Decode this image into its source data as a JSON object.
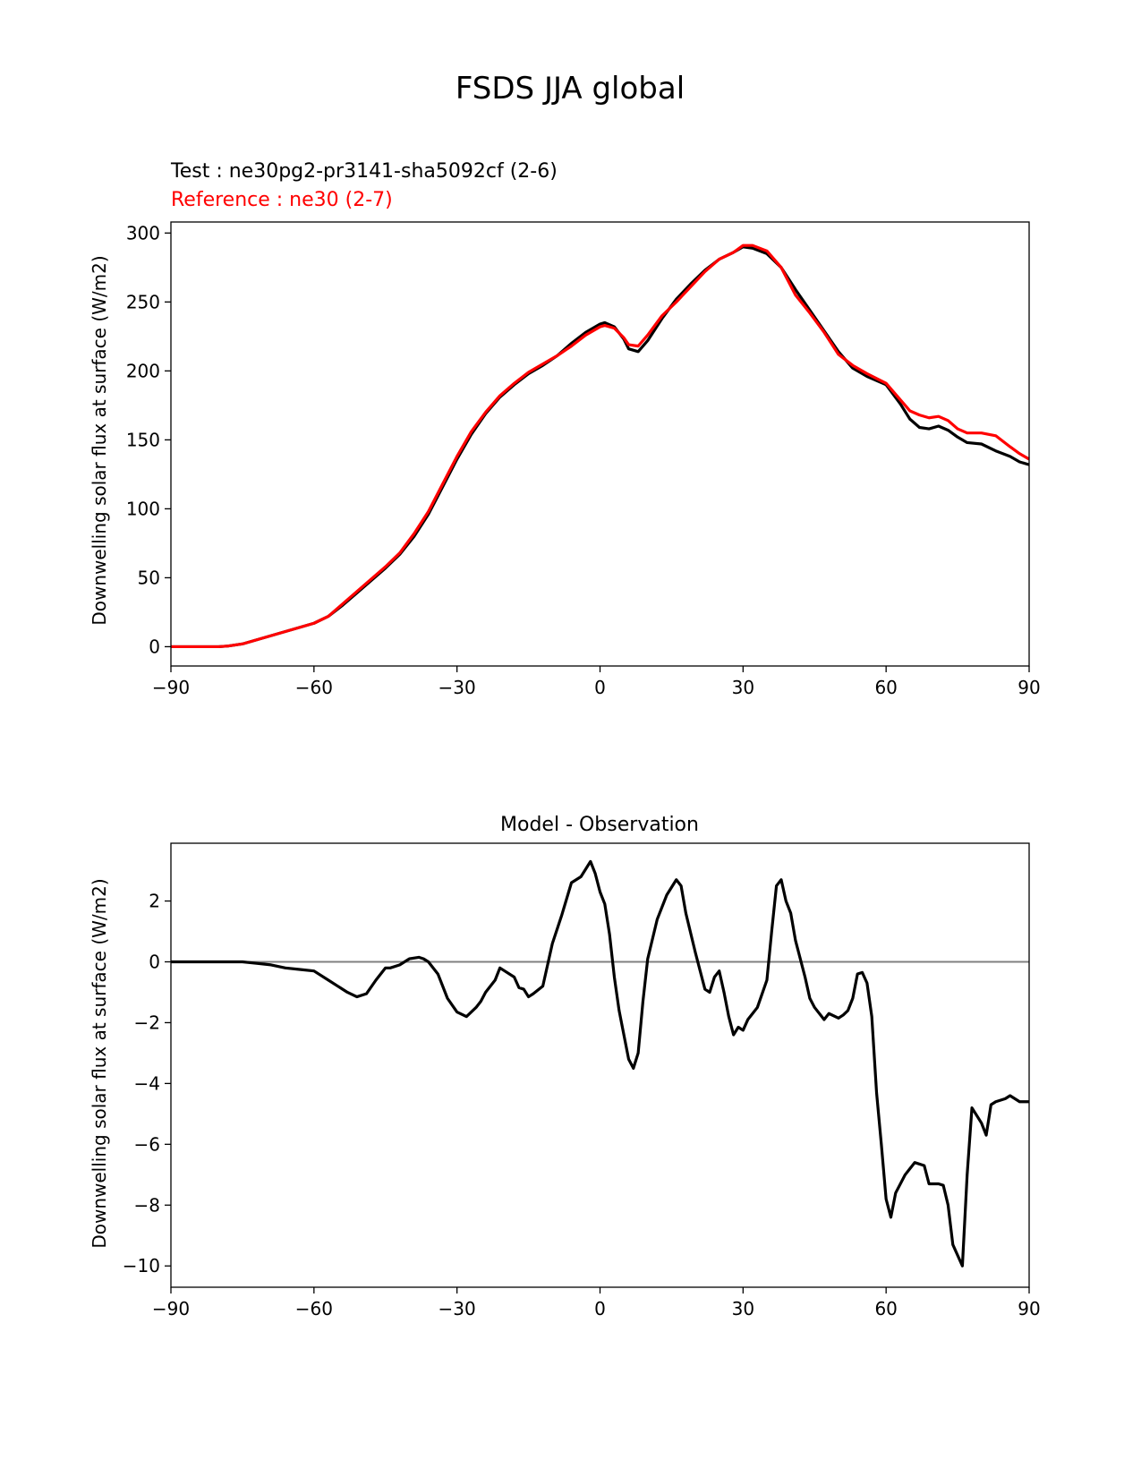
{
  "figure": {
    "title": "FSDS JJA global"
  },
  "colors": {
    "test": "#000000",
    "reference": "#ff0000",
    "zero_line": "#808080",
    "axes": "#000000"
  },
  "chart_data": [
    {
      "type": "line",
      "test_label": "Test : ne30pg2-pr3141-sha5092cf (2-6)",
      "reference_label": "Reference : ne30 (2-7)",
      "xlabel": "",
      "ylabel": "Downwelling solar flux at surface (W/m2)",
      "xlim": [
        -90,
        90
      ],
      "ylim": [
        -14,
        308
      ],
      "xticks": [
        -90,
        -60,
        -30,
        0,
        30,
        60,
        90
      ],
      "xtick_labels": [
        "−90",
        "−60",
        "−30",
        "0",
        "30",
        "60",
        "90"
      ],
      "yticks": [
        0,
        50,
        100,
        150,
        200,
        250,
        300
      ],
      "ytick_labels": [
        "0",
        "50",
        "100",
        "150",
        "200",
        "250",
        "300"
      ],
      "series": [
        {
          "name": "Test",
          "color": "#000000",
          "x": [
            -90,
            -85,
            -80,
            -78,
            -75,
            -72,
            -69,
            -66,
            -63,
            -60,
            -57,
            -54,
            -51,
            -48,
            -45,
            -42,
            -39,
            -36,
            -33,
            -30,
            -27,
            -24,
            -21,
            -18,
            -15,
            -12,
            -9,
            -6,
            -3,
            0,
            1,
            3,
            5,
            6,
            8,
            10,
            13,
            16,
            19,
            22,
            25,
            28,
            30,
            32,
            35,
            38,
            41,
            44,
            47,
            50,
            53,
            56,
            60,
            63,
            65,
            67,
            69,
            71,
            73,
            75,
            77,
            80,
            83,
            86,
            88,
            90
          ],
          "values": [
            0,
            0,
            0,
            0.5,
            2,
            5,
            8,
            11,
            14,
            17,
            22,
            30,
            39,
            48,
            57,
            67,
            80,
            96,
            116,
            136,
            154,
            169,
            181,
            190,
            198,
            204,
            211,
            220,
            228,
            234,
            235,
            232,
            223,
            216,
            214,
            222,
            238,
            252,
            263,
            273,
            281,
            286,
            290,
            289,
            285,
            275,
            259,
            244,
            229,
            214,
            202,
            196,
            190,
            176,
            165,
            159,
            158,
            160,
            157,
            152,
            148,
            147,
            142,
            138,
            134,
            132
          ]
        },
        {
          "name": "Reference",
          "color": "#ff0000",
          "x": [
            -90,
            -85,
            -80,
            -78,
            -75,
            -72,
            -69,
            -66,
            -63,
            -60,
            -57,
            -54,
            -51,
            -48,
            -45,
            -42,
            -39,
            -36,
            -33,
            -30,
            -27,
            -24,
            -21,
            -18,
            -15,
            -12,
            -9,
            -6,
            -3,
            0,
            1,
            3,
            5,
            6,
            8,
            10,
            13,
            16,
            19,
            22,
            25,
            28,
            30,
            32,
            35,
            38,
            41,
            44,
            47,
            50,
            53,
            56,
            60,
            63,
            65,
            67,
            69,
            71,
            73,
            75,
            77,
            80,
            83,
            86,
            88,
            90
          ],
          "values": [
            0,
            0,
            0,
            0.5,
            2,
            5,
            8,
            11,
            14,
            17,
            22,
            31,
            40,
            49,
            58,
            68,
            82,
            98,
            118,
            138,
            156,
            170,
            182,
            191,
            199,
            205,
            211,
            218,
            226,
            232,
            233,
            231,
            224,
            219,
            218,
            226,
            240,
            250,
            261,
            272,
            281,
            286,
            291,
            291,
            287,
            275,
            255,
            242,
            228,
            212,
            204,
            198,
            191,
            179,
            171,
            168,
            166,
            167,
            164,
            158,
            155,
            155,
            153,
            145,
            140,
            136
          ]
        }
      ]
    },
    {
      "type": "line",
      "title": "Model - Observation",
      "xlabel": "",
      "ylabel": "Downwelling solar flux at surface (W/m2)",
      "xlim": [
        -90,
        90
      ],
      "ylim": [
        -10.7,
        3.9
      ],
      "xticks": [
        -90,
        -60,
        -30,
        0,
        30,
        60,
        90
      ],
      "xtick_labels": [
        "−90",
        "−60",
        "−30",
        "0",
        "30",
        "60",
        "90"
      ],
      "yticks": [
        -10,
        -8,
        -6,
        -4,
        -2,
        0,
        2
      ],
      "ytick_labels": [
        "−10",
        "−8",
        "−6",
        "−4",
        "−2",
        "0",
        "2"
      ],
      "zero_line": 0,
      "series": [
        {
          "name": "Model - Observation",
          "color": "#000000",
          "x": [
            -90,
            -75,
            -72,
            -69,
            -66,
            -63,
            -60,
            -57,
            -55,
            -53,
            -51,
            -49,
            -47,
            -45,
            -44,
            -42,
            -40,
            -38,
            -37,
            -36,
            -34,
            -32,
            -30,
            -28,
            -26,
            -25,
            -24,
            -22,
            -21,
            -20,
            -18,
            -17,
            -16,
            -15,
            -14,
            -12,
            -10,
            -8,
            -6,
            -4,
            -2,
            -1,
            0,
            1,
            2,
            3,
            4,
            6,
            7,
            8,
            9,
            10,
            12,
            14,
            16,
            17,
            18,
            20,
            22,
            23,
            24,
            25,
            26,
            27,
            28,
            29,
            30,
            31,
            32,
            33,
            35,
            36,
            37,
            38,
            39,
            40,
            41,
            43,
            44,
            45,
            47,
            48,
            50,
            51,
            52,
            53,
            54,
            55,
            56,
            57,
            58,
            59,
            60,
            61,
            62,
            64,
            66,
            68,
            69,
            71,
            72,
            73,
            74,
            76,
            77,
            78,
            80,
            81,
            82,
            83,
            85,
            86,
            87,
            88,
            90
          ],
          "values": [
            0,
            0,
            -0.05,
            -0.1,
            -0.2,
            -0.25,
            -0.3,
            -0.6,
            -0.8,
            -1.0,
            -1.15,
            -1.05,
            -0.6,
            -0.2,
            -0.2,
            -0.1,
            0.1,
            0.15,
            0.1,
            0,
            -0.4,
            -1.2,
            -1.65,
            -1.8,
            -1.5,
            -1.3,
            -1.0,
            -0.6,
            -0.2,
            -0.3,
            -0.5,
            -0.85,
            -0.9,
            -1.15,
            -1.05,
            -0.8,
            0.6,
            1.55,
            2.6,
            2.8,
            3.3,
            2.9,
            2.3,
            1.9,
            0.9,
            -0.5,
            -1.6,
            -3.2,
            -3.5,
            -3.0,
            -1.3,
            0.1,
            1.4,
            2.2,
            2.7,
            2.5,
            1.6,
            0.3,
            -0.9,
            -1.0,
            -0.5,
            -0.3,
            -1.0,
            -1.8,
            -2.4,
            -2.15,
            -2.25,
            -1.9,
            -1.7,
            -1.5,
            -0.6,
            1.0,
            2.5,
            2.7,
            2.0,
            1.6,
            0.7,
            -0.5,
            -1.2,
            -1.5,
            -1.9,
            -1.7,
            -1.85,
            -1.75,
            -1.6,
            -1.2,
            -0.4,
            -0.35,
            -0.7,
            -1.8,
            -4.3,
            -6.0,
            -7.8,
            -8.4,
            -7.6,
            -7.0,
            -6.6,
            -6.7,
            -7.3,
            -7.3,
            -7.35,
            -8.0,
            -9.3,
            -10.0,
            -7.0,
            -4.8,
            -5.3,
            -5.7,
            -4.7,
            -4.6,
            -4.5,
            -4.4,
            -4.5,
            -4.6,
            -4.6
          ]
        }
      ]
    }
  ]
}
